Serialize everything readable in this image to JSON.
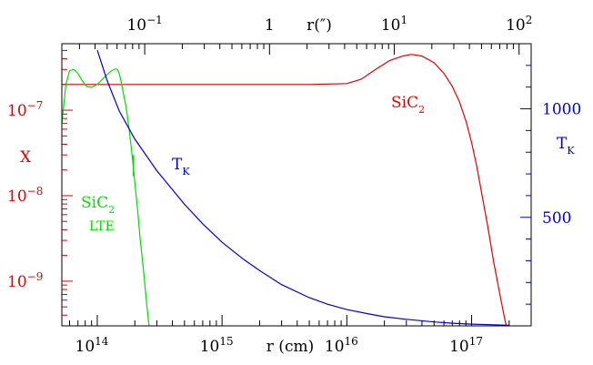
{
  "chart_data": {
    "type": "line",
    "colors": {
      "red": "#e00000",
      "green": "#00dd00",
      "blue": "#0000d0",
      "frame": "#000000"
    },
    "x_axis": {
      "scale": "log",
      "range_cm": [
        52000000000000.0,
        3e+17
      ],
      "label": "r (cm)",
      "ticks": [
        {
          "value": 100000000000000.0,
          "base": "10",
          "exp": "14"
        },
        {
          "value": 1000000000000000.0,
          "base": "10",
          "exp": "15"
        },
        {
          "value": 1e+16,
          "base": "10",
          "exp": "16"
        },
        {
          "value": 1e+17,
          "base": "10",
          "exp": "17"
        }
      ]
    },
    "top_axis": {
      "scale": "log",
      "label": "r(″)",
      "ticks": [
        {
          "value_cm": 240000000000000.0,
          "base": "10",
          "exp": "−1"
        },
        {
          "value_cm": 2400000000000000.0,
          "base": "1",
          "exp": ""
        },
        {
          "value_cm": 2.4e+16,
          "base": "10",
          "exp": "1"
        },
        {
          "value_cm": 2.4e+17,
          "base": "10",
          "exp": "2"
        }
      ]
    },
    "left_axis": {
      "scale": "log",
      "range": [
        3e-10,
        6e-07
      ],
      "label": "X",
      "color": "#e00000",
      "ticks": [
        {
          "value": 1e-07,
          "base": "10",
          "exp": "−7"
        },
        {
          "value": 1e-08,
          "base": "10",
          "exp": "−8"
        },
        {
          "value": 1e-09,
          "base": "10",
          "exp": "−9"
        }
      ]
    },
    "right_axis": {
      "scale": "linear",
      "range_K": [
        0,
        1300
      ],
      "label_main": "T",
      "label_sub": "K",
      "color": "#0000d0",
      "ticks": [
        {
          "value": 1000,
          "label": "1000"
        },
        {
          "value": 500,
          "label": "500"
        }
      ]
    },
    "series": [
      {
        "name_main": "SiC",
        "name_sub": "2",
        "color": "#e00000",
        "axis": "left",
        "points": [
          [
            52000000000000.0,
            2e-07
          ],
          [
            100000000000000.0,
            2e-07
          ],
          [
            1000000000000000.0,
            2e-07
          ],
          [
            5000000000000000.0,
            2e-07
          ],
          [
            1e+16,
            2.05e-07
          ],
          [
            1.3e+16,
            2.3e-07
          ],
          [
            1.7e+16,
            3e-07
          ],
          [
            2.2e+16,
            3.8e-07
          ],
          [
            2.8e+16,
            4.3e-07
          ],
          [
            3.3e+16,
            4.5e-07
          ],
          [
            4e+16,
            4.3e-07
          ],
          [
            5e+16,
            3.6e-07
          ],
          [
            6e+16,
            2.7e-07
          ],
          [
            7e+16,
            1.9e-07
          ],
          [
            8e+16,
            1.25e-07
          ],
          [
            9e+16,
            7.5e-08
          ],
          [
            1e+17,
            4.2e-08
          ],
          [
            1.1e+17,
            2.2e-08
          ],
          [
            1.2e+17,
            1.1e-08
          ],
          [
            1.35e+17,
            4.3e-09
          ],
          [
            1.5e+17,
            1.7e-09
          ],
          [
            1.7e+17,
            6.5e-10
          ],
          [
            1.85e+17,
            3.5e-10
          ],
          [
            1.9e+17,
            3e-10
          ]
        ]
      },
      {
        "name_main": "SiC",
        "name_sub": "2",
        "name_extra": "LTE",
        "color": "#00dd00",
        "axis": "left",
        "points": [
          [
            52000000000000.0,
            7e-08
          ],
          [
            56000000000000.0,
            2e-07
          ],
          [
            60000000000000.0,
            2.9e-07
          ],
          [
            65000000000000.0,
            3e-07
          ],
          [
            70000000000000.0,
            2.7e-07
          ],
          [
            76000000000000.0,
            2.2e-07
          ],
          [
            82000000000000.0,
            1.9e-07
          ],
          [
            90000000000000.0,
            1.85e-07
          ],
          [
            100000000000000.0,
            2e-07
          ],
          [
            110000000000000.0,
            2.3e-07
          ],
          [
            120000000000000.0,
            2.6e-07
          ],
          [
            130000000000000.0,
            2.9e-07
          ],
          [
            140000000000000.0,
            3.05e-07
          ],
          [
            145000000000000.0,
            3e-07
          ],
          [
            150000000000000.0,
            2.7e-07
          ],
          [
            155000000000000.0,
            2.2e-07
          ],
          [
            160000000000000.0,
            1.7e-07
          ],
          [
            170000000000000.0,
            1.1e-07
          ],
          [
            180000000000000.0,
            6e-08
          ],
          [
            190000000000000.0,
            3e-08
          ],
          [
            200000000000000.0,
            1.4e-08
          ],
          [
            210000000000000.0,
            7e-09
          ],
          [
            220000000000000.0,
            3.3e-09
          ],
          [
            235000000000000.0,
            1.3e-09
          ],
          [
            250000000000000.0,
            5e-10
          ],
          [
            260000000000000.0,
            3e-10
          ]
        ]
      },
      {
        "name_main": "T",
        "name_sub": "K",
        "color": "#0000d0",
        "axis": "right",
        "points": [
          [
            100000000000000.0,
            1270
          ],
          [
            120000000000000.0,
            1130
          ],
          [
            150000000000000.0,
            990
          ],
          [
            200000000000000.0,
            860
          ],
          [
            300000000000000.0,
            715
          ],
          [
            500000000000000.0,
            560
          ],
          [
            700000000000000.0,
            470
          ],
          [
            1000000000000000.0,
            385
          ],
          [
            1500000000000000.0,
            305
          ],
          [
            2000000000000000.0,
            255
          ],
          [
            3000000000000000.0,
            190
          ],
          [
            5000000000000000.0,
            130
          ],
          [
            7000000000000000.0,
            100
          ],
          [
            1e+16,
            75
          ],
          [
            1.5e+16,
            55
          ],
          [
            2e+16,
            42
          ],
          [
            3e+16,
            30
          ],
          [
            5e+16,
            18
          ],
          [
            7e+16,
            12
          ],
          [
            1e+17,
            8
          ],
          [
            1.5e+17,
            5
          ],
          [
            2e+17,
            3
          ]
        ]
      }
    ],
    "labels": {
      "red_main": "SiC",
      "red_sub": "2",
      "green_main": "SiC",
      "green_sub": "2",
      "green_extra": "LTE",
      "blue_main": "T",
      "blue_sub": "K"
    }
  }
}
